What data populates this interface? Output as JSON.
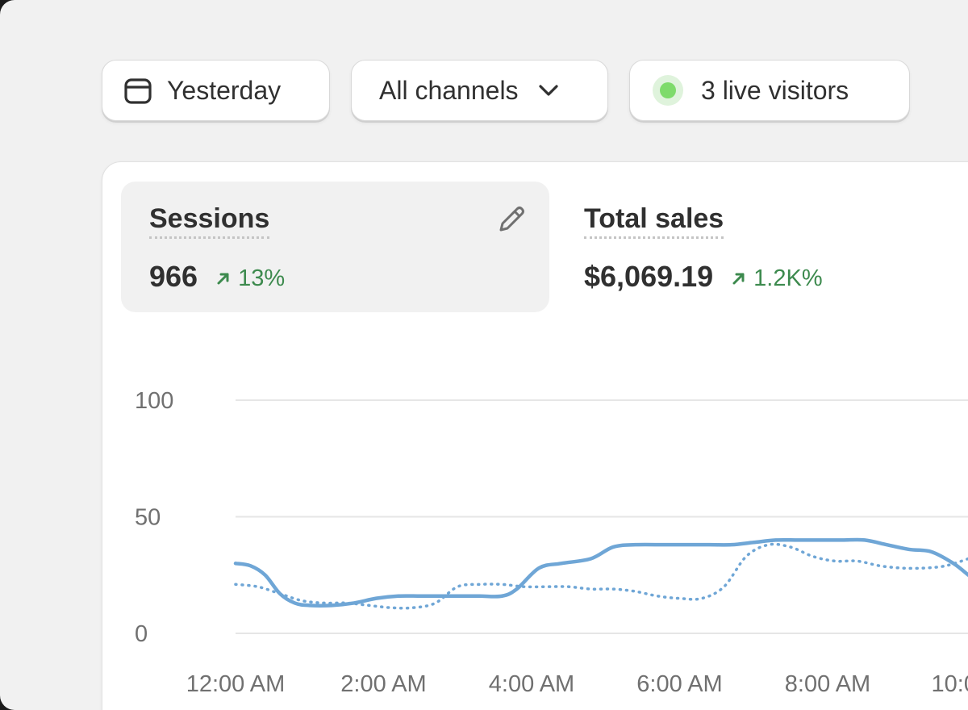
{
  "toolbar": {
    "date_label": "Yesterday",
    "date_icon": "calendar-icon",
    "channels_label": "All channels",
    "channels_icon": "chevron-down-icon",
    "live_label": "3 live visitors",
    "live_color": "#7edb6b"
  },
  "metrics": {
    "sessions": {
      "title": "Sessions",
      "value": "966",
      "change": "13%",
      "change_direction": "up",
      "edit_icon": "pencil-icon"
    },
    "sales": {
      "title": "Total sales",
      "value": "$6,069.19",
      "change": "1.2K%",
      "change_direction": "up"
    }
  },
  "colors": {
    "accent_line": "#6fa6d6",
    "positive": "#3d8a4e"
  },
  "chart_data": {
    "type": "line",
    "y_ticks": [
      "100",
      "50",
      "0"
    ],
    "x_ticks": [
      "12:00 AM",
      "2:00 AM",
      "4:00 AM",
      "6:00 AM",
      "8:00 AM",
      "10:0"
    ],
    "ylim": [
      0,
      100
    ],
    "grid": true,
    "series": [
      {
        "style": "solid",
        "x": [
          0,
          0.2,
          0.4,
          0.6,
          0.8,
          1.0,
          1.3,
          1.6,
          1.9,
          2.2,
          2.5,
          2.8,
          3.0,
          3.3,
          3.6,
          3.8,
          4.1,
          4.4,
          4.8,
          5.1,
          5.4,
          5.8,
          6.1,
          6.4,
          6.7,
          7.0,
          7.3,
          7.6,
          7.9,
          8.2,
          8.5,
          8.8,
          9.1,
          9.4,
          9.7,
          9.9
        ],
        "values": [
          30,
          29,
          25,
          17,
          13,
          12,
          12,
          13,
          15,
          16,
          16,
          16,
          16,
          16,
          16,
          19,
          28,
          30,
          32,
          37,
          38,
          38,
          38,
          38,
          38,
          39,
          40,
          40,
          40,
          40,
          40,
          38,
          36,
          35,
          30,
          25
        ]
      },
      {
        "style": "dotted",
        "x": [
          0,
          0.3,
          0.6,
          0.9,
          1.2,
          1.5,
          1.8,
          2.1,
          2.4,
          2.7,
          3.0,
          3.3,
          3.6,
          3.9,
          4.2,
          4.5,
          4.8,
          5.1,
          5.4,
          5.7,
          6.0,
          6.3,
          6.6,
          6.9,
          7.2,
          7.5,
          7.8,
          8.1,
          8.4,
          8.7,
          9.0,
          9.3,
          9.6,
          9.9
        ],
        "values": [
          21,
          20,
          17,
          14,
          13,
          13,
          12,
          11,
          11,
          13,
          20,
          21,
          21,
          20,
          20,
          20,
          19,
          19,
          18,
          16,
          15,
          15,
          20,
          33,
          38,
          37,
          33,
          31,
          31,
          29,
          28,
          28,
          29,
          32
        ]
      }
    ]
  }
}
